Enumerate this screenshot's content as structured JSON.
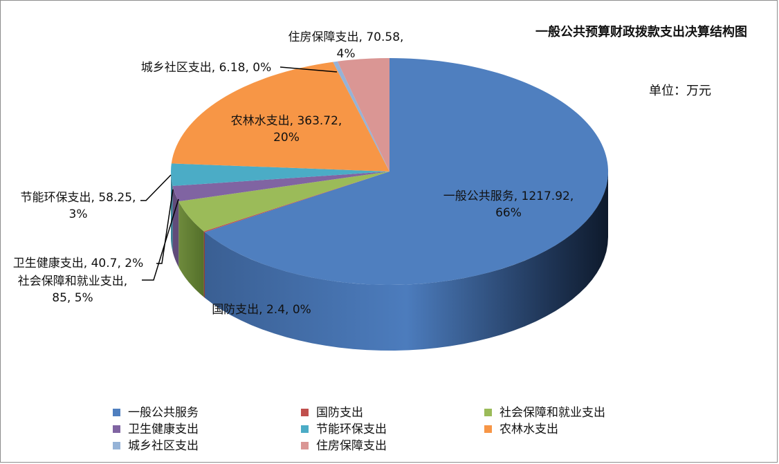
{
  "chart_data": {
    "type": "pie",
    "title": "一般公共预算财政拨款支出决算结构图",
    "unit_label": "单位：万元",
    "slices": [
      {
        "name": "一般公共服务",
        "value": 1217.92,
        "percent": "66%",
        "color": "#4F7FBF"
      },
      {
        "name": "国防支出",
        "value": 2.4,
        "percent": "0%",
        "color": "#C0504D"
      },
      {
        "name": "社会保障和就业支出",
        "value": 85,
        "percent": "5%",
        "color": "#9BBB59"
      },
      {
        "name": "卫生健康支出",
        "value": 40.7,
        "percent": "2%",
        "color": "#8064A2"
      },
      {
        "name": "节能环保支出",
        "value": 58.25,
        "percent": "3%",
        "color": "#4BACC6"
      },
      {
        "name": "农林水支出",
        "value": 363.72,
        "percent": "20%",
        "color": "#F79646"
      },
      {
        "name": "城乡社区支出",
        "value": 6.18,
        "percent": "0%",
        "color": "#95B3D7"
      },
      {
        "name": "住房保障支出",
        "value": 70.58,
        "percent": "4%",
        "color": "#DA9694"
      }
    ],
    "data_labels": [
      {
        "lines": [
          "一般公共服务, 1217.92,",
          "66%"
        ]
      },
      {
        "lines": [
          "国防支出, 2.4, 0%"
        ]
      },
      {
        "lines": [
          "社会保障和就业支出,",
          "85, 5%"
        ]
      },
      {
        "lines": [
          "卫生健康支出, 40.7, 2%"
        ]
      },
      {
        "lines": [
          "节能环保支出, 58.25,",
          "3%"
        ]
      },
      {
        "lines": [
          "农林水支出, 363.72,",
          "20%"
        ]
      },
      {
        "lines": [
          "城乡社区支出, 6.18, 0%"
        ]
      },
      {
        "lines": [
          "住房保障支出, 70.58,",
          "4%"
        ]
      }
    ],
    "legend_position": "bottom"
  }
}
